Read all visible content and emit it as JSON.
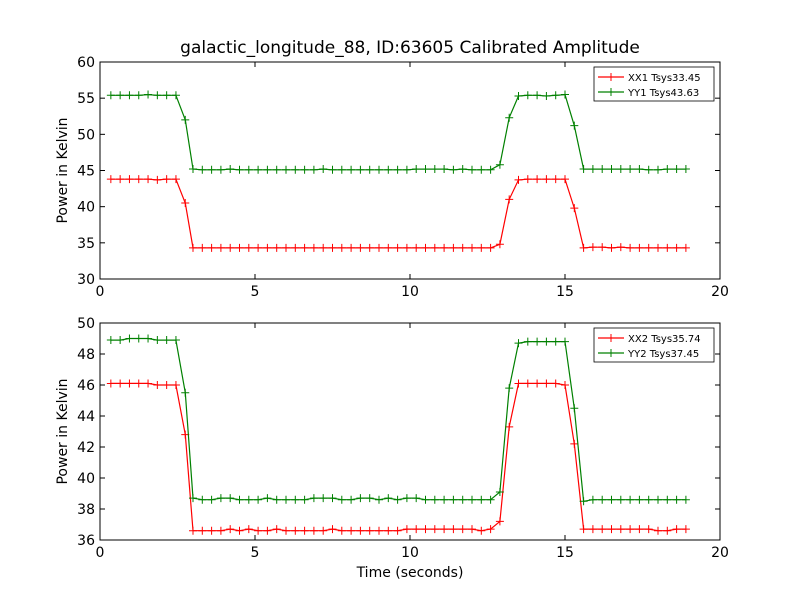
{
  "chart_data": [
    {
      "type": "line",
      "title": "galactic_longitude_88, ID:63605 Calibrated Amplitude",
      "xlabel": "",
      "ylabel": "Power in Kelvin",
      "xlim": [
        0,
        20
      ],
      "ylim": [
        30,
        60
      ],
      "xticks": [
        0,
        5,
        10,
        15,
        20
      ],
      "yticks": [
        30,
        35,
        40,
        45,
        50,
        55,
        60
      ],
      "grid": false,
      "legend": "top-right",
      "marker": "+",
      "x": [
        0.35,
        0.65,
        0.95,
        1.25,
        1.55,
        1.85,
        2.15,
        2.45,
        2.75,
        3.0,
        3.3,
        3.6,
        3.9,
        4.2,
        4.5,
        4.8,
        5.1,
        5.4,
        5.7,
        6.0,
        6.3,
        6.6,
        6.9,
        7.2,
        7.5,
        7.8,
        8.1,
        8.4,
        8.7,
        9.0,
        9.3,
        9.6,
        9.9,
        10.2,
        10.5,
        10.8,
        11.1,
        11.4,
        11.7,
        12.0,
        12.3,
        12.6,
        12.9,
        13.2,
        13.5,
        13.8,
        14.1,
        14.4,
        14.7,
        15.0,
        15.3,
        15.6,
        15.9,
        16.2,
        16.5,
        16.8,
        17.1,
        17.4,
        17.7,
        18.0,
        18.3,
        18.6,
        18.9
      ],
      "series": [
        {
          "name": "XX1 Tsys33.45",
          "color": "#ff0000",
          "values": [
            43.8,
            43.8,
            43.8,
            43.8,
            43.8,
            43.7,
            43.8,
            43.8,
            40.5,
            34.3,
            34.3,
            34.3,
            34.3,
            34.3,
            34.3,
            34.3,
            34.3,
            34.3,
            34.3,
            34.3,
            34.3,
            34.3,
            34.3,
            34.3,
            34.3,
            34.3,
            34.3,
            34.3,
            34.3,
            34.3,
            34.3,
            34.3,
            34.3,
            34.3,
            34.3,
            34.3,
            34.3,
            34.3,
            34.3,
            34.3,
            34.3,
            34.3,
            34.8,
            41.0,
            43.7,
            43.8,
            43.8,
            43.8,
            43.8,
            43.8,
            39.8,
            34.3,
            34.4,
            34.4,
            34.3,
            34.4,
            34.3,
            34.3,
            34.3,
            34.3,
            34.3,
            34.3,
            34.3
          ]
        },
        {
          "name": "YY1 Tsys43.63",
          "color": "#008000",
          "values": [
            55.4,
            55.4,
            55.4,
            55.4,
            55.5,
            55.4,
            55.4,
            55.4,
            52.0,
            45.2,
            45.1,
            45.1,
            45.1,
            45.2,
            45.1,
            45.1,
            45.1,
            45.1,
            45.1,
            45.1,
            45.1,
            45.1,
            45.1,
            45.2,
            45.1,
            45.1,
            45.1,
            45.1,
            45.1,
            45.1,
            45.1,
            45.1,
            45.1,
            45.2,
            45.2,
            45.2,
            45.2,
            45.1,
            45.2,
            45.1,
            45.1,
            45.1,
            45.8,
            52.3,
            55.3,
            55.4,
            55.4,
            55.3,
            55.4,
            55.5,
            51.2,
            45.2,
            45.2,
            45.2,
            45.2,
            45.2,
            45.2,
            45.2,
            45.1,
            45.1,
            45.2,
            45.2,
            45.2
          ]
        }
      ]
    },
    {
      "type": "line",
      "title": "",
      "xlabel": "Time (seconds)",
      "ylabel": "Power in Kelvin",
      "xlim": [
        0,
        20
      ],
      "ylim": [
        36,
        50
      ],
      "xticks": [
        0,
        5,
        10,
        15,
        20
      ],
      "yticks": [
        36,
        38,
        40,
        42,
        44,
        46,
        48,
        50
      ],
      "grid": false,
      "legend": "top-right",
      "marker": "+",
      "x": [
        0.35,
        0.65,
        0.95,
        1.25,
        1.55,
        1.85,
        2.15,
        2.45,
        2.75,
        3.0,
        3.3,
        3.6,
        3.9,
        4.2,
        4.5,
        4.8,
        5.1,
        5.4,
        5.7,
        6.0,
        6.3,
        6.6,
        6.9,
        7.2,
        7.5,
        7.8,
        8.1,
        8.4,
        8.7,
        9.0,
        9.3,
        9.6,
        9.9,
        10.2,
        10.5,
        10.8,
        11.1,
        11.4,
        11.7,
        12.0,
        12.3,
        12.6,
        12.9,
        13.2,
        13.5,
        13.8,
        14.1,
        14.4,
        14.7,
        15.0,
        15.3,
        15.6,
        15.9,
        16.2,
        16.5,
        16.8,
        17.1,
        17.4,
        17.7,
        18.0,
        18.3,
        18.6,
        18.9
      ],
      "series": [
        {
          "name": "XX2 Tsys35.74",
          "color": "#ff0000",
          "values": [
            46.1,
            46.1,
            46.1,
            46.1,
            46.1,
            46.0,
            46.0,
            46.0,
            42.8,
            36.6,
            36.6,
            36.6,
            36.6,
            36.7,
            36.6,
            36.7,
            36.6,
            36.6,
            36.7,
            36.6,
            36.6,
            36.6,
            36.6,
            36.6,
            36.7,
            36.6,
            36.6,
            36.6,
            36.6,
            36.6,
            36.6,
            36.6,
            36.7,
            36.7,
            36.7,
            36.7,
            36.7,
            36.7,
            36.7,
            36.7,
            36.6,
            36.7,
            37.2,
            43.3,
            46.1,
            46.1,
            46.1,
            46.1,
            46.1,
            46.0,
            42.2,
            36.7,
            36.7,
            36.7,
            36.7,
            36.7,
            36.7,
            36.7,
            36.7,
            36.6,
            36.6,
            36.7,
            36.7
          ]
        },
        {
          "name": "YY2 Tsys37.45",
          "color": "#008000",
          "values": [
            48.9,
            48.9,
            49.0,
            49.0,
            49.0,
            48.9,
            48.9,
            48.9,
            45.5,
            38.7,
            38.6,
            38.6,
            38.7,
            38.7,
            38.6,
            38.6,
            38.6,
            38.7,
            38.6,
            38.6,
            38.6,
            38.6,
            38.7,
            38.7,
            38.7,
            38.6,
            38.6,
            38.7,
            38.7,
            38.6,
            38.7,
            38.6,
            38.7,
            38.7,
            38.6,
            38.6,
            38.6,
            38.6,
            38.6,
            38.6,
            38.6,
            38.6,
            39.1,
            45.8,
            48.7,
            48.8,
            48.8,
            48.8,
            48.8,
            48.8,
            44.5,
            38.5,
            38.6,
            38.6,
            38.6,
            38.6,
            38.6,
            38.6,
            38.6,
            38.6,
            38.6,
            38.6,
            38.6
          ]
        }
      ]
    }
  ]
}
